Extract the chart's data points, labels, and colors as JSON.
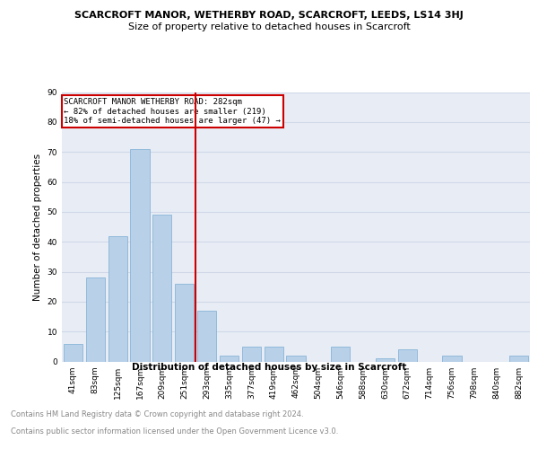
{
  "title": "SCARCROFT MANOR, WETHERBY ROAD, SCARCROFT, LEEDS, LS14 3HJ",
  "subtitle": "Size of property relative to detached houses in Scarcroft",
  "xlabel": "Distribution of detached houses by size in Scarcroft",
  "ylabel": "Number of detached properties",
  "categories": [
    "41sqm",
    "83sqm",
    "125sqm",
    "167sqm",
    "209sqm",
    "251sqm",
    "293sqm",
    "335sqm",
    "377sqm",
    "419sqm",
    "462sqm",
    "504sqm",
    "546sqm",
    "588sqm",
    "630sqm",
    "672sqm",
    "714sqm",
    "756sqm",
    "798sqm",
    "840sqm",
    "882sqm"
  ],
  "values": [
    6,
    28,
    42,
    71,
    49,
    26,
    17,
    2,
    5,
    5,
    2,
    0,
    5,
    0,
    1,
    4,
    0,
    2,
    0,
    0,
    2
  ],
  "bar_color": "#b8d0e8",
  "bar_edge_color": "#7aadd4",
  "vline_color": "#cc0000",
  "annotation_line1": "SCARCROFT MANOR WETHERBY ROAD: 282sqm",
  "annotation_line2": "← 82% of detached houses are smaller (219)",
  "annotation_line3": "18% of semi-detached houses are larger (47) →",
  "annotation_box_color": "#cc0000",
  "grid_color": "#d0d8e8",
  "background_color": "#e8edf5",
  "ylim": [
    0,
    90
  ],
  "yticks": [
    0,
    10,
    20,
    30,
    40,
    50,
    60,
    70,
    80,
    90
  ],
  "footer_line1": "Contains HM Land Registry data © Crown copyright and database right 2024.",
  "footer_line2": "Contains public sector information licensed under the Open Government Licence v3.0.",
  "title_fontsize": 8,
  "subtitle_fontsize": 8,
  "axis_label_fontsize": 7.5,
  "tick_fontsize": 6.5,
  "annotation_fontsize": 6.5,
  "footer_fontsize": 6
}
